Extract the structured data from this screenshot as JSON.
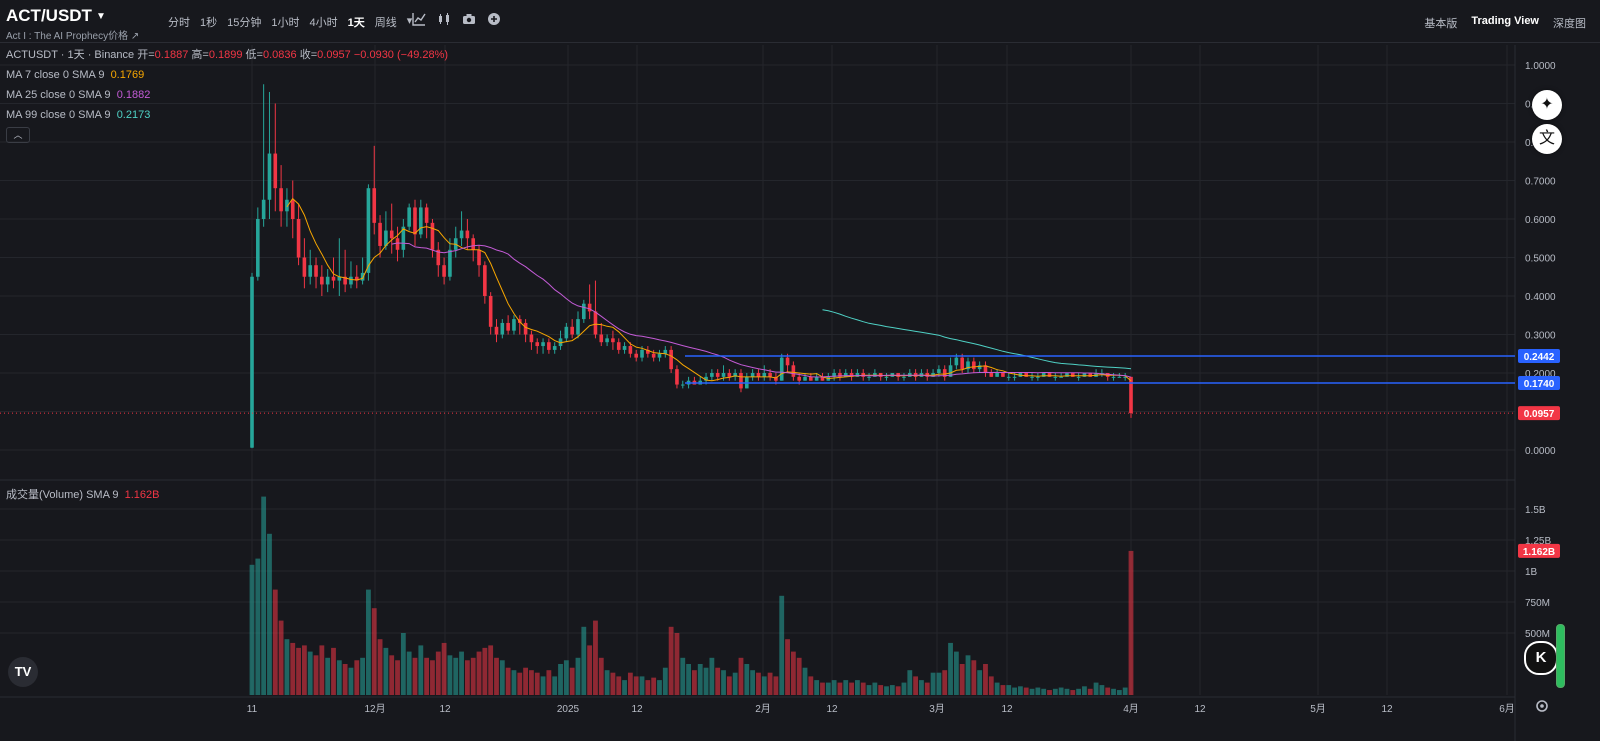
{
  "header": {
    "symbol": "ACT/USDT",
    "subtitle": "Act I : The AI Prophecy价格 ↗",
    "intervals": [
      "分时",
      "1秒",
      "15分钟",
      "1小时",
      "4小时",
      "1天",
      "周线"
    ],
    "active_interval": "1天",
    "views": [
      "基本版",
      "Trading View",
      "深度图"
    ],
    "active_view": "Trading View"
  },
  "legend": {
    "pair": "ACTUSDT · 1天 · Binance",
    "open_label": "开=",
    "open": "0.1887",
    "high_label": "高=",
    "high": "0.1899",
    "low_label": "低=",
    "low": "0.0836",
    "close_label": "收=",
    "close": "0.0957",
    "change": "−0.0930 (−49.28%)",
    "ma7_label": "MA 7 close 0 SMA 9",
    "ma7_value": "0.1769",
    "ma25_label": "MA 25 close 0 SMA 9",
    "ma25_value": "0.1882",
    "ma99_label": "MA 99 close 0 SMA 9",
    "ma99_value": "0.2173",
    "collapse": "︿"
  },
  "volume_legend": {
    "label": "成交量(Volume) SMA 9",
    "value": "1.162B"
  },
  "colors": {
    "up": "#26a69a",
    "down": "#f23645",
    "ma7": "#f7a600",
    "ma25": "#c35bd6",
    "ma99": "#4fd1c5",
    "hline": "#2962ff",
    "bg": "#17181d"
  },
  "chart_data": {
    "type": "candlestick",
    "price_axis": [
      "1.0000",
      "0.9000",
      "0.8000",
      "0.7000",
      "0.6000",
      "0.5000",
      "0.4000",
      "0.3000",
      "0.2000",
      "0.1000",
      "0.0000"
    ],
    "volume_axis": [
      "1.5B",
      "1.25B",
      "1B",
      "750M",
      "500M"
    ],
    "x_labels": [
      "11",
      "12月",
      "12",
      "2025",
      "12",
      "2月",
      "12",
      "3月",
      "12",
      "4月",
      "12",
      "5月",
      "12",
      "6月"
    ],
    "price_labels": [
      {
        "value": 0.2442,
        "text": "0.2442",
        "kind": "line"
      },
      {
        "value": 0.174,
        "text": "0.1740",
        "kind": "line"
      },
      {
        "value": 0.0957,
        "text": "0.0957",
        "kind": "last"
      }
    ],
    "volume_label": {
      "value": 1.162,
      "text": "1.162B"
    },
    "horizontal_lines": [
      0.2442,
      0.174
    ],
    "current_price": 0.0957,
    "candles": [
      [
        0.006,
        0.45,
        0.46,
        0.005,
        1.05
      ],
      [
        0.45,
        0.6,
        0.63,
        0.44,
        1.1
      ],
      [
        0.6,
        0.65,
        0.95,
        0.58,
        1.6
      ],
      [
        0.65,
        0.77,
        0.93,
        0.6,
        1.3
      ],
      [
        0.77,
        0.68,
        0.9,
        0.62,
        0.85
      ],
      [
        0.68,
        0.62,
        0.74,
        0.58,
        0.6
      ],
      [
        0.62,
        0.65,
        0.68,
        0.58,
        0.45
      ],
      [
        0.65,
        0.6,
        0.7,
        0.55,
        0.42
      ],
      [
        0.6,
        0.5,
        0.64,
        0.48,
        0.38
      ],
      [
        0.5,
        0.45,
        0.55,
        0.42,
        0.4
      ],
      [
        0.45,
        0.48,
        0.52,
        0.43,
        0.35
      ],
      [
        0.48,
        0.45,
        0.5,
        0.42,
        0.32
      ],
      [
        0.45,
        0.43,
        0.48,
        0.4,
        0.4
      ],
      [
        0.43,
        0.45,
        0.47,
        0.41,
        0.3
      ],
      [
        0.45,
        0.44,
        0.5,
        0.42,
        0.38
      ],
      [
        0.44,
        0.45,
        0.55,
        0.4,
        0.28
      ],
      [
        0.45,
        0.43,
        0.52,
        0.41,
        0.25
      ],
      [
        0.43,
        0.45,
        0.49,
        0.42,
        0.22
      ],
      [
        0.45,
        0.44,
        0.48,
        0.42,
        0.28
      ],
      [
        0.44,
        0.46,
        0.5,
        0.43,
        0.3
      ],
      [
        0.46,
        0.68,
        0.69,
        0.44,
        0.85
      ],
      [
        0.68,
        0.59,
        0.79,
        0.56,
        0.7
      ],
      [
        0.59,
        0.53,
        0.61,
        0.5,
        0.45
      ],
      [
        0.53,
        0.57,
        0.62,
        0.52,
        0.38
      ],
      [
        0.57,
        0.55,
        0.64,
        0.51,
        0.32
      ],
      [
        0.55,
        0.52,
        0.58,
        0.49,
        0.28
      ],
      [
        0.52,
        0.58,
        0.6,
        0.5,
        0.5
      ],
      [
        0.58,
        0.63,
        0.64,
        0.57,
        0.35
      ],
      [
        0.63,
        0.56,
        0.65,
        0.53,
        0.3
      ],
      [
        0.56,
        0.63,
        0.65,
        0.55,
        0.4
      ],
      [
        0.63,
        0.59,
        0.64,
        0.55,
        0.3
      ],
      [
        0.59,
        0.52,
        0.6,
        0.5,
        0.28
      ],
      [
        0.52,
        0.48,
        0.54,
        0.45,
        0.35
      ],
      [
        0.48,
        0.45,
        0.5,
        0.43,
        0.42
      ],
      [
        0.45,
        0.52,
        0.55,
        0.44,
        0.32
      ],
      [
        0.52,
        0.55,
        0.58,
        0.5,
        0.3
      ],
      [
        0.55,
        0.57,
        0.62,
        0.53,
        0.35
      ],
      [
        0.57,
        0.55,
        0.6,
        0.52,
        0.28
      ],
      [
        0.55,
        0.52,
        0.56,
        0.49,
        0.3
      ],
      [
        0.52,
        0.48,
        0.53,
        0.45,
        0.35
      ],
      [
        0.48,
        0.4,
        0.49,
        0.38,
        0.38
      ],
      [
        0.4,
        0.32,
        0.41,
        0.3,
        0.4
      ],
      [
        0.32,
        0.3,
        0.34,
        0.28,
        0.3
      ],
      [
        0.3,
        0.33,
        0.34,
        0.29,
        0.28
      ],
      [
        0.33,
        0.31,
        0.35,
        0.3,
        0.22
      ],
      [
        0.31,
        0.34,
        0.35,
        0.3,
        0.2
      ],
      [
        0.34,
        0.33,
        0.35,
        0.3,
        0.18
      ],
      [
        0.33,
        0.3,
        0.34,
        0.28,
        0.22
      ],
      [
        0.3,
        0.28,
        0.31,
        0.26,
        0.2
      ],
      [
        0.28,
        0.27,
        0.29,
        0.25,
        0.18
      ],
      [
        0.27,
        0.28,
        0.29,
        0.25,
        0.15
      ],
      [
        0.28,
        0.26,
        0.29,
        0.25,
        0.2
      ],
      [
        0.26,
        0.27,
        0.28,
        0.25,
        0.15
      ],
      [
        0.27,
        0.29,
        0.31,
        0.26,
        0.25
      ],
      [
        0.29,
        0.32,
        0.33,
        0.28,
        0.28
      ],
      [
        0.32,
        0.3,
        0.34,
        0.29,
        0.22
      ],
      [
        0.3,
        0.34,
        0.36,
        0.29,
        0.3
      ],
      [
        0.34,
        0.38,
        0.39,
        0.33,
        0.55
      ],
      [
        0.38,
        0.36,
        0.43,
        0.34,
        0.4
      ],
      [
        0.36,
        0.3,
        0.44,
        0.29,
        0.6
      ],
      [
        0.3,
        0.28,
        0.33,
        0.27,
        0.3
      ],
      [
        0.28,
        0.29,
        0.3,
        0.27,
        0.2
      ],
      [
        0.29,
        0.28,
        0.31,
        0.26,
        0.18
      ],
      [
        0.28,
        0.26,
        0.29,
        0.25,
        0.15
      ],
      [
        0.26,
        0.27,
        0.28,
        0.25,
        0.12
      ],
      [
        0.27,
        0.25,
        0.28,
        0.24,
        0.18
      ],
      [
        0.25,
        0.24,
        0.26,
        0.23,
        0.15
      ],
      [
        0.24,
        0.26,
        0.27,
        0.23,
        0.15
      ],
      [
        0.26,
        0.25,
        0.27,
        0.24,
        0.12
      ],
      [
        0.25,
        0.24,
        0.26,
        0.23,
        0.14
      ],
      [
        0.24,
        0.25,
        0.26,
        0.23,
        0.12
      ],
      [
        0.25,
        0.26,
        0.27,
        0.24,
        0.22
      ],
      [
        0.26,
        0.21,
        0.27,
        0.2,
        0.55
      ],
      [
        0.21,
        0.17,
        0.22,
        0.16,
        0.5
      ],
      [
        0.17,
        0.17,
        0.18,
        0.16,
        0.3
      ],
      [
        0.17,
        0.18,
        0.19,
        0.16,
        0.25
      ],
      [
        0.18,
        0.17,
        0.19,
        0.17,
        0.2
      ],
      [
        0.17,
        0.18,
        0.19,
        0.17,
        0.25
      ],
      [
        0.18,
        0.19,
        0.2,
        0.17,
        0.22
      ],
      [
        0.19,
        0.2,
        0.21,
        0.18,
        0.3
      ],
      [
        0.2,
        0.19,
        0.21,
        0.18,
        0.22
      ],
      [
        0.19,
        0.2,
        0.22,
        0.18,
        0.2
      ],
      [
        0.2,
        0.19,
        0.21,
        0.18,
        0.15
      ],
      [
        0.19,
        0.2,
        0.21,
        0.18,
        0.18
      ],
      [
        0.2,
        0.16,
        0.21,
        0.15,
        0.3
      ],
      [
        0.16,
        0.19,
        0.2,
        0.16,
        0.25
      ],
      [
        0.19,
        0.2,
        0.21,
        0.18,
        0.2
      ],
      [
        0.2,
        0.19,
        0.21,
        0.18,
        0.18
      ],
      [
        0.19,
        0.2,
        0.22,
        0.18,
        0.15
      ],
      [
        0.2,
        0.19,
        0.21,
        0.18,
        0.18
      ],
      [
        0.19,
        0.18,
        0.2,
        0.17,
        0.15
      ],
      [
        0.18,
        0.24,
        0.25,
        0.18,
        0.8
      ],
      [
        0.24,
        0.22,
        0.25,
        0.2,
        0.45
      ],
      [
        0.22,
        0.19,
        0.23,
        0.18,
        0.35
      ],
      [
        0.19,
        0.18,
        0.2,
        0.17,
        0.3
      ],
      [
        0.18,
        0.19,
        0.2,
        0.18,
        0.22
      ],
      [
        0.19,
        0.18,
        0.2,
        0.18,
        0.15
      ],
      [
        0.18,
        0.19,
        0.2,
        0.18,
        0.12
      ],
      [
        0.19,
        0.18,
        0.2,
        0.18,
        0.1
      ],
      [
        0.18,
        0.19,
        0.2,
        0.18,
        0.1
      ],
      [
        0.19,
        0.2,
        0.21,
        0.18,
        0.12
      ],
      [
        0.2,
        0.19,
        0.21,
        0.18,
        0.1
      ],
      [
        0.19,
        0.2,
        0.21,
        0.19,
        0.12
      ],
      [
        0.2,
        0.19,
        0.21,
        0.18,
        0.1
      ],
      [
        0.19,
        0.2,
        0.21,
        0.19,
        0.12
      ],
      [
        0.2,
        0.19,
        0.21,
        0.18,
        0.1
      ],
      [
        0.19,
        0.19,
        0.2,
        0.18,
        0.08
      ],
      [
        0.19,
        0.2,
        0.21,
        0.19,
        0.1
      ],
      [
        0.2,
        0.19,
        0.2,
        0.18,
        0.08
      ],
      [
        0.19,
        0.19,
        0.2,
        0.18,
        0.07
      ],
      [
        0.19,
        0.2,
        0.2,
        0.19,
        0.08
      ],
      [
        0.2,
        0.19,
        0.2,
        0.18,
        0.07
      ],
      [
        0.19,
        0.19,
        0.2,
        0.18,
        0.1
      ],
      [
        0.19,
        0.2,
        0.21,
        0.19,
        0.2
      ],
      [
        0.2,
        0.19,
        0.21,
        0.18,
        0.15
      ],
      [
        0.19,
        0.2,
        0.21,
        0.19,
        0.12
      ],
      [
        0.2,
        0.19,
        0.21,
        0.18,
        0.1
      ],
      [
        0.19,
        0.2,
        0.21,
        0.19,
        0.18
      ],
      [
        0.2,
        0.21,
        0.22,
        0.19,
        0.18
      ],
      [
        0.21,
        0.19,
        0.22,
        0.18,
        0.2
      ],
      [
        0.19,
        0.22,
        0.24,
        0.19,
        0.42
      ],
      [
        0.22,
        0.24,
        0.25,
        0.21,
        0.35
      ],
      [
        0.24,
        0.21,
        0.25,
        0.2,
        0.25
      ],
      [
        0.21,
        0.23,
        0.24,
        0.2,
        0.32
      ],
      [
        0.23,
        0.21,
        0.24,
        0.2,
        0.28
      ],
      [
        0.21,
        0.22,
        0.23,
        0.2,
        0.2
      ],
      [
        0.22,
        0.2,
        0.23,
        0.19,
        0.25
      ],
      [
        0.2,
        0.19,
        0.21,
        0.19,
        0.15
      ],
      [
        0.19,
        0.2,
        0.21,
        0.19,
        0.1
      ],
      [
        0.2,
        0.19,
        0.2,
        0.19,
        0.08
      ],
      [
        0.19,
        0.19,
        0.2,
        0.18,
        0.08
      ],
      [
        0.19,
        0.19,
        0.2,
        0.18,
        0.06
      ],
      [
        0.19,
        0.2,
        0.2,
        0.19,
        0.07
      ],
      [
        0.2,
        0.19,
        0.2,
        0.19,
        0.06
      ],
      [
        0.19,
        0.19,
        0.2,
        0.18,
        0.05
      ],
      [
        0.19,
        0.19,
        0.2,
        0.18,
        0.06
      ],
      [
        0.19,
        0.2,
        0.2,
        0.19,
        0.05
      ],
      [
        0.2,
        0.19,
        0.2,
        0.19,
        0.04
      ],
      [
        0.19,
        0.19,
        0.2,
        0.18,
        0.05
      ],
      [
        0.19,
        0.19,
        0.2,
        0.19,
        0.06
      ],
      [
        0.19,
        0.2,
        0.2,
        0.19,
        0.05
      ],
      [
        0.2,
        0.19,
        0.2,
        0.19,
        0.04
      ],
      [
        0.19,
        0.19,
        0.2,
        0.18,
        0.05
      ],
      [
        0.19,
        0.2,
        0.2,
        0.19,
        0.07
      ],
      [
        0.2,
        0.19,
        0.2,
        0.19,
        0.05
      ],
      [
        0.19,
        0.2,
        0.21,
        0.19,
        0.1
      ],
      [
        0.2,
        0.2,
        0.21,
        0.19,
        0.08
      ],
      [
        0.2,
        0.19,
        0.2,
        0.18,
        0.06
      ],
      [
        0.19,
        0.19,
        0.2,
        0.18,
        0.05
      ],
      [
        0.19,
        0.19,
        0.2,
        0.19,
        0.04
      ],
      [
        0.19,
        0.19,
        0.2,
        0.18,
        0.06
      ],
      [
        0.19,
        0.0957,
        0.1899,
        0.0836,
        1.162
      ]
    ]
  }
}
